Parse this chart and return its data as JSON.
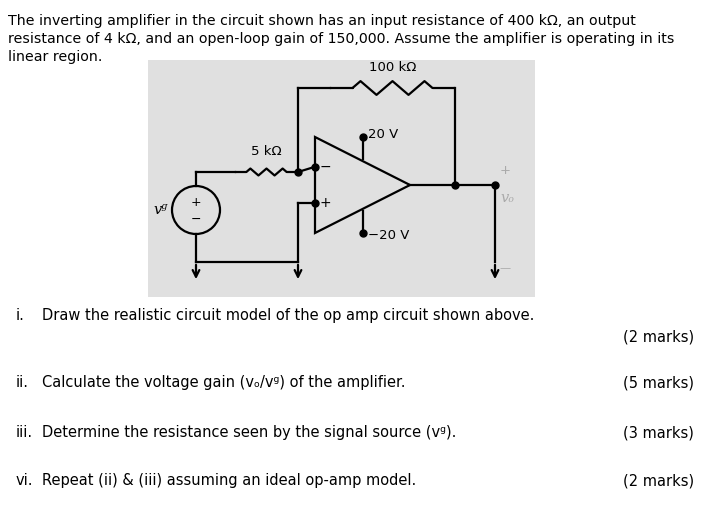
{
  "intro_line1": "The inverting amplifier in the circuit shown has an input resistance of 400 kΩ, an output",
  "intro_line2": "resistance of 4 kΩ, and an open-loop gain of 150,000. Assume the amplifier is operating in its",
  "intro_line3": "linear region.",
  "bg_color": "#e0e0e0",
  "questions": [
    {
      "num": "i.",
      "text": "Draw the realistic circuit model of the op amp circuit shown above.",
      "marks": "(2 marks)",
      "marks_on_next_line": true
    },
    {
      "num": "ii.",
      "text": "Calculate the voltage gain (vₒ/vᵍ) of the amplifier.",
      "marks": "(5 marks)",
      "marks_on_next_line": false
    },
    {
      "num": "iii.",
      "text": "Determine the resistance seen by the signal source (vᵍ).",
      "marks": "(3 marks)",
      "marks_on_next_line": false
    },
    {
      "num": "vi.",
      "text": "Repeat (ii) & (iii) assuming an ideal op-amp model.",
      "marks": "(2 marks)",
      "marks_on_next_line": false
    }
  ],
  "resistor_5k": "5 kΩ",
  "resistor_100k": "100 kΩ",
  "supply_pos": "20 V",
  "supply_neg": "−20 V",
  "vg_label": "vᵍ",
  "vo_label": "vₒ"
}
